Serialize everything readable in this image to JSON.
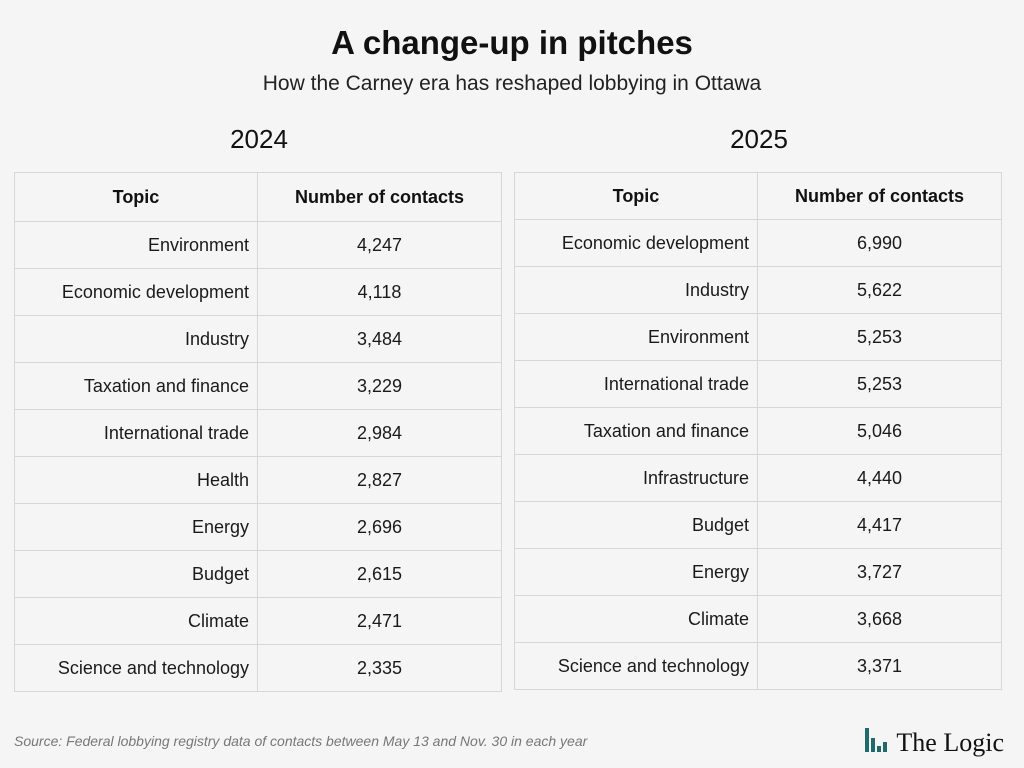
{
  "title": "A change-up in pitches",
  "subtitle": "How the Carney era has reshaped lobbying in Ottawa",
  "tables": [
    {
      "year": "2024",
      "header_topic": "Topic",
      "header_count": "Number of contacts",
      "rows": [
        {
          "topic": "Environment",
          "count": "4,247"
        },
        {
          "topic": "Economic development",
          "count": "4,118"
        },
        {
          "topic": "Industry",
          "count": "3,484"
        },
        {
          "topic": "Taxation and finance",
          "count": "3,229"
        },
        {
          "topic": "International trade",
          "count": "2,984"
        },
        {
          "topic": "Health",
          "count": "2,827"
        },
        {
          "topic": "Energy",
          "count": "2,696"
        },
        {
          "topic": "Budget",
          "count": "2,615"
        },
        {
          "topic": "Climate",
          "count": "2,471"
        },
        {
          "topic": "Science and technology",
          "count": "2,335"
        }
      ]
    },
    {
      "year": "2025",
      "header_topic": "Topic",
      "header_count": "Number of contacts",
      "rows": [
        {
          "topic": "Economic development",
          "count": "6,990"
        },
        {
          "topic": "Industry",
          "count": "5,622"
        },
        {
          "topic": "Environment",
          "count": "5,253"
        },
        {
          "topic": "International trade",
          "count": "5,253"
        },
        {
          "topic": "Taxation and finance",
          "count": "5,046"
        },
        {
          "topic": "Infrastructure",
          "count": "4,440"
        },
        {
          "topic": "Budget",
          "count": "4,417"
        },
        {
          "topic": "Energy",
          "count": "3,727"
        },
        {
          "topic": "Climate",
          "count": "3,668"
        },
        {
          "topic": "Science and technology",
          "count": "3,371"
        }
      ]
    }
  ],
  "chart_data": [
    {
      "type": "table",
      "title": "2024",
      "columns": [
        "Topic",
        "Number of contacts"
      ],
      "categories": [
        "Environment",
        "Economic development",
        "Industry",
        "Taxation and finance",
        "International trade",
        "Health",
        "Energy",
        "Budget",
        "Climate",
        "Science and technology"
      ],
      "values": [
        4247,
        4118,
        3484,
        3229,
        2984,
        2827,
        2696,
        2615,
        2471,
        2335
      ]
    },
    {
      "type": "table",
      "title": "2025",
      "columns": [
        "Topic",
        "Number of contacts"
      ],
      "categories": [
        "Economic development",
        "Industry",
        "Environment",
        "International trade",
        "Taxation and finance",
        "Infrastructure",
        "Budget",
        "Energy",
        "Climate",
        "Science and technology"
      ],
      "values": [
        6990,
        5622,
        5253,
        5253,
        5046,
        4440,
        4417,
        3727,
        3668,
        3371
      ]
    }
  ],
  "source": "Source: Federal lobbying registry data of contacts between May 13 and Nov. 30 in each year",
  "logo": {
    "text": "The Logic",
    "icon": "the-logic-bars-icon",
    "color": "#1f6b6b"
  },
  "colors": {
    "background": "#f5f5f5",
    "border": "#d6d6d6",
    "source_text": "#777777"
  }
}
